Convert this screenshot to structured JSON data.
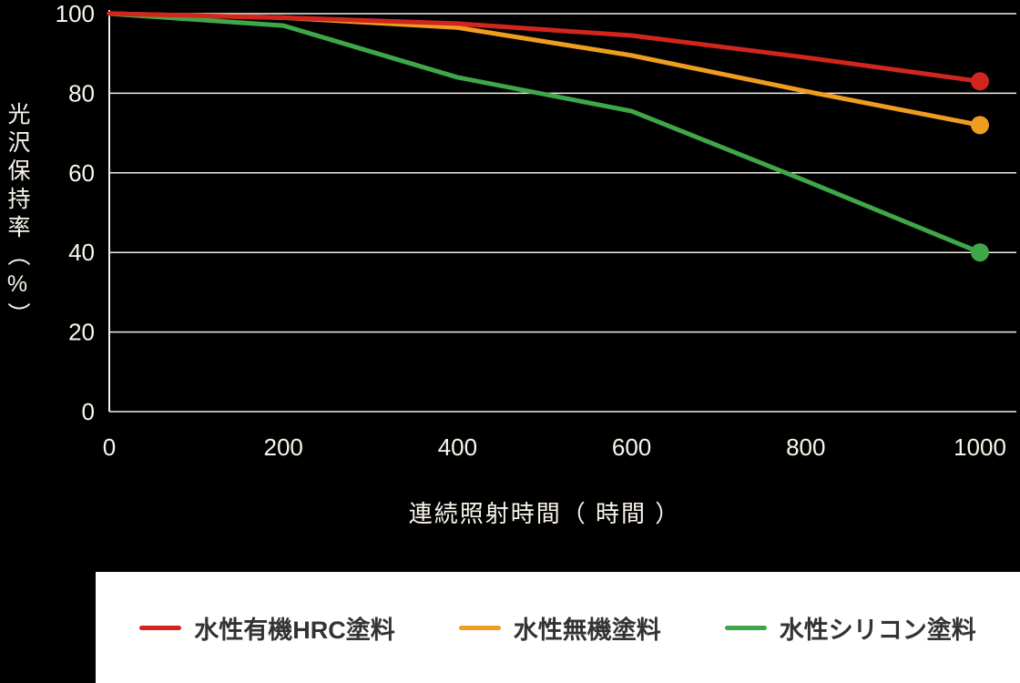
{
  "chart_data": {
    "type": "line",
    "x": [
      0,
      200,
      400,
      600,
      800,
      1000
    ],
    "series": [
      {
        "name": "水性有機HRC塗料",
        "color": "#d1251d",
        "values": [
          100,
          99,
          97.5,
          94.5,
          89,
          83
        ]
      },
      {
        "name": "水性無機塗料",
        "color": "#ef9d20",
        "values": [
          100,
          99,
          96.5,
          89.5,
          80.5,
          72
        ]
      },
      {
        "name": "水性シリコン塗料",
        "color": "#3fa74a",
        "values": [
          100,
          97,
          84,
          75.5,
          58,
          40
        ]
      }
    ],
    "title": "",
    "xlabel": "連続照射時間（ 時間 ）",
    "ylabel": "光沢保持率（%）",
    "x_ticks": [
      "0",
      "200",
      "400",
      "600",
      "800",
      "1000"
    ],
    "y_ticks": [
      "0",
      "20",
      "40",
      "60",
      "80",
      "100"
    ],
    "xlim": [
      0,
      1000
    ],
    "ylim": [
      0,
      100
    ],
    "grid": "horizontal",
    "legend_position": "bottom",
    "end_marker": "dot"
  },
  "styles": {
    "background": "#000000",
    "grid_color": "#f3efe6",
    "axis_color": "#f3efe6",
    "text_color": "#faf6ec",
    "legend_background": "#ffffff",
    "legend_text_color": "#333333"
  }
}
